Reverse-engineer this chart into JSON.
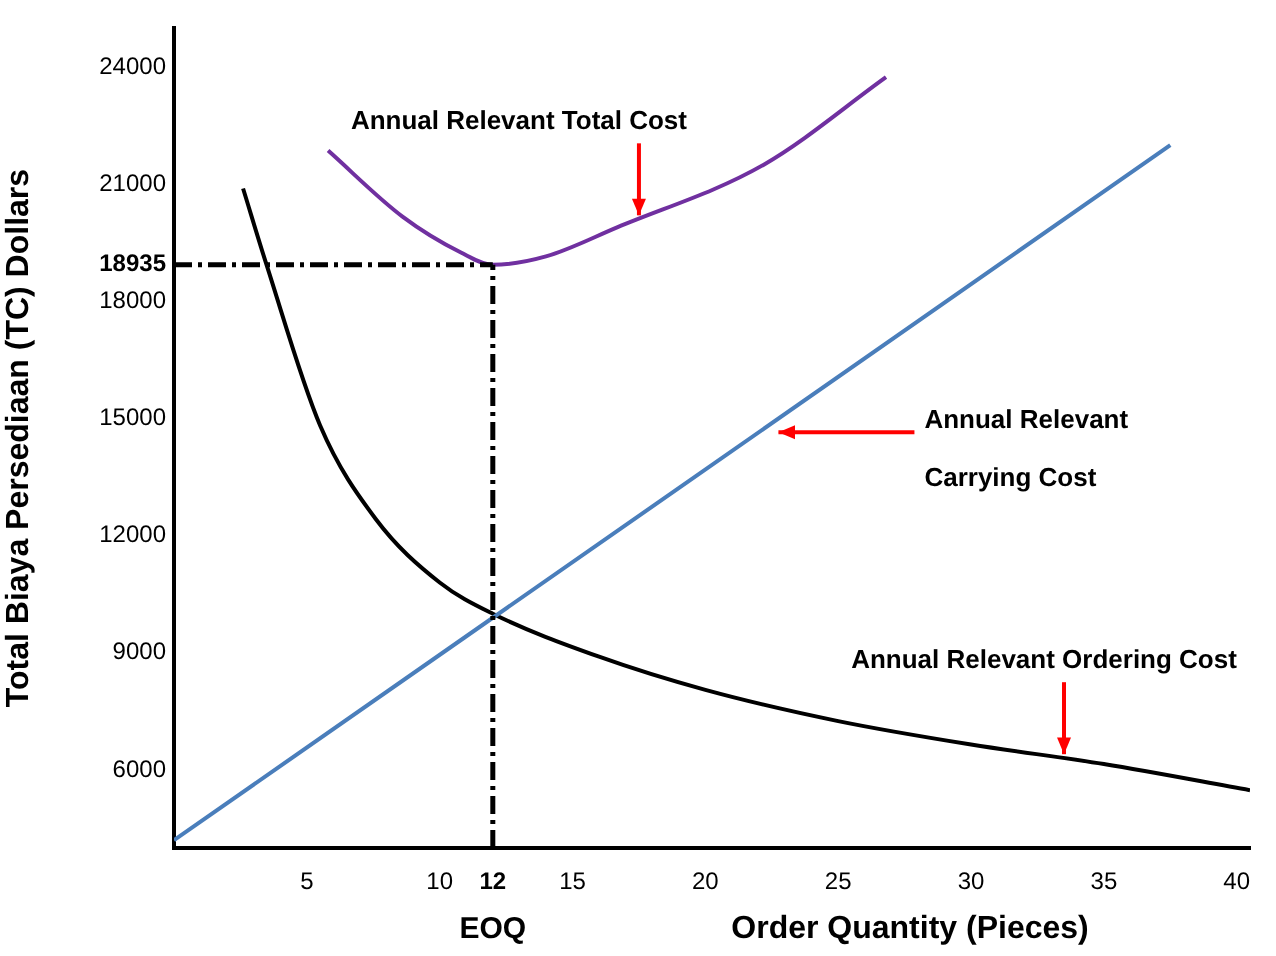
{
  "chart_data": {
    "type": "line",
    "xlabel": "Order Quantity (Pieces)",
    "ylabel": "Total Biaya Persediaan (TC) Dollars",
    "xlim": [
      0,
      40.5
    ],
    "ylim": [
      4000,
      25000
    ],
    "xticks": [
      5,
      10,
      12,
      15,
      20,
      25,
      30,
      35,
      40
    ],
    "yticks": [
      6000,
      9000,
      12000,
      15000,
      18000,
      {
        "value": 18935,
        "label": "18935"
      },
      21000,
      24000
    ],
    "series": [
      {
        "color": "#7030a0",
        "x": [
          5.8,
          8.6,
          10.8,
          12,
          14,
          16.7,
          22.2,
          26.8
        ],
        "values": [
          21860,
          20170,
          19250,
          18935,
          19150,
          19900,
          21500,
          23740
        ]
      },
      {
        "color": "#4a7ebb",
        "x": [
          0,
          37.5
        ],
        "values": [
          4200,
          22000
        ]
      },
      {
        "color": "#000000",
        "x": [
          2.6,
          3.5,
          5.5,
          7.6,
          10,
          12,
          16,
          20,
          25,
          30,
          35,
          40.5
        ],
        "values": [
          20890,
          18900,
          14820,
          12420,
          10800,
          10000,
          8900,
          8050,
          7250,
          6650,
          6150,
          5480
        ]
      }
    ],
    "ref_lines": [
      {
        "axis": "y",
        "value": 18935,
        "line_style": "dashed",
        "color": "#000000"
      },
      {
        "axis": "x",
        "value": 12,
        "label": "EOQ",
        "line_style": "dashed",
        "color": "#000000"
      }
    ],
    "annotations": [
      {
        "text": "Annual Relevant Total Cost",
        "x": 17.5,
        "y": 20100
      },
      {
        "text": "Annual Relevant Carrying Cost",
        "x": 22.6,
        "y": 14650
      },
      {
        "text": "Annual Relevant Ordering Cost",
        "x": 33.5,
        "y": 6300
      }
    ],
    "marker": "none",
    "line_style": "solid",
    "grid": false,
    "legend": false
  }
}
